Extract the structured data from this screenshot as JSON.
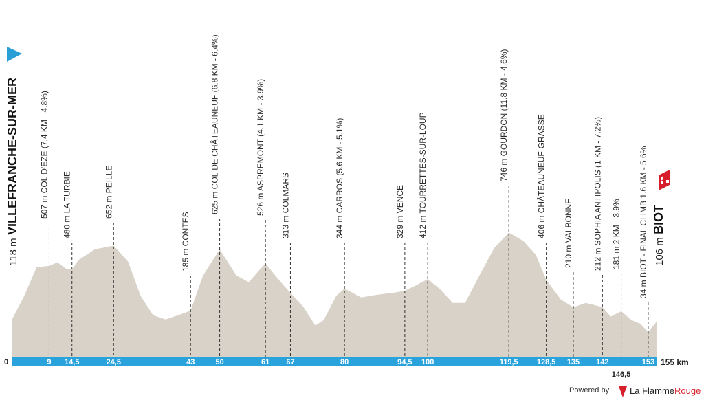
{
  "chart_data": {
    "type": "area",
    "start_alt": "118 m",
    "start": "VILLEFRANCHE-SUR-MER",
    "finish_alt": "106 m",
    "finish": "BIOT",
    "x": [
      0,
      3,
      6,
      9,
      11,
      13,
      14.5,
      16,
      20,
      24.5,
      28,
      31,
      34,
      37,
      40,
      43,
      46,
      50,
      54,
      57,
      61,
      64,
      67,
      70,
      73,
      75,
      78,
      80,
      84,
      88,
      92,
      94.5,
      97,
      100,
      103,
      106,
      109,
      112,
      116,
      119.5,
      123,
      126,
      128.5,
      132,
      135,
      138,
      142,
      144,
      146.5,
      149,
      151,
      153,
      155
    ],
    "values": [
      118,
      291,
      498,
      507,
      532,
      488,
      480,
      547,
      626,
      652,
      537,
      291,
      153,
      123,
      153,
      185,
      439,
      625,
      439,
      390,
      526,
      414,
      313,
      217,
      79,
      118,
      291,
      344,
      281,
      300,
      315,
      329,
      365,
      412,
      340,
      241,
      241,
      414,
      636,
      746,
      686,
      587,
      406,
      266,
      210,
      241,
      212,
      143,
      181,
      118,
      93,
      34,
      106
    ],
    "color": "#d8d2c8",
    "xlim": [
      0,
      155
    ],
    "ylim": [
      -150,
      1000
    ],
    "xticks": [
      0,
      9,
      {
        "value": 14.5,
        "label": "14,5"
      },
      {
        "value": 24.5,
        "label": "24,5"
      },
      43,
      50,
      61,
      67,
      80,
      {
        "value": 94.5,
        "label": "94,5"
      },
      100,
      {
        "value": 119.5,
        "label": "119,5"
      },
      {
        "value": 128.5,
        "label": "128,5"
      },
      135,
      142,
      {
        "value": 146.5,
        "label": "146,5"
      },
      153,
      {
        "value": 155,
        "label": "155 km"
      }
    ],
    "waypoints": [
      {
        "x": 9,
        "text": "507 m COL D'EZE (7.4 KM - 4.8%)"
      },
      {
        "x": 14.5,
        "text": "480 m LA TURBIE"
      },
      {
        "x": 24.5,
        "text": "652 m PEILLE"
      },
      {
        "x": 43,
        "text": "185 m CONTES"
      },
      {
        "x": 50,
        "text": "625 m COL DE CHÂTEAUNEUF (6.8 KM - 6.4%)"
      },
      {
        "x": 61,
        "text": "526 m ASPREMONT (4.1 KM - 3.9%)"
      },
      {
        "x": 67,
        "text": "313 m COLMARS"
      },
      {
        "x": 80,
        "text": "344 m CARROS (5.6 KM - 5.1%)"
      },
      {
        "x": 94.5,
        "text": "329 m VENCE"
      },
      {
        "x": 100,
        "text": "412 m TOURRETTES-SUR-LOUP"
      },
      {
        "x": 119.5,
        "text": "746 m GOURDON (11.8 KM - 4.6%)"
      },
      {
        "x": 128.5,
        "text": "406 m CHÂTEAUNEUF-GRASSE"
      },
      {
        "x": 135,
        "text": "210 m VALBONNE"
      },
      {
        "x": 142,
        "text": "212 m SOPHIA ANTIPOLIS (1 KM - 7.2%)"
      },
      {
        "x": 146.5,
        "text": "181 m 2 KM - 3.9%"
      },
      {
        "x": 153,
        "text": "34 m BIOT - FINAL CLIMB 1.6 KM - 5,6%"
      }
    ]
  },
  "footer": {
    "powered": "Powered by",
    "brand": "La Flamme",
    "brand_accent": "Rouge"
  }
}
